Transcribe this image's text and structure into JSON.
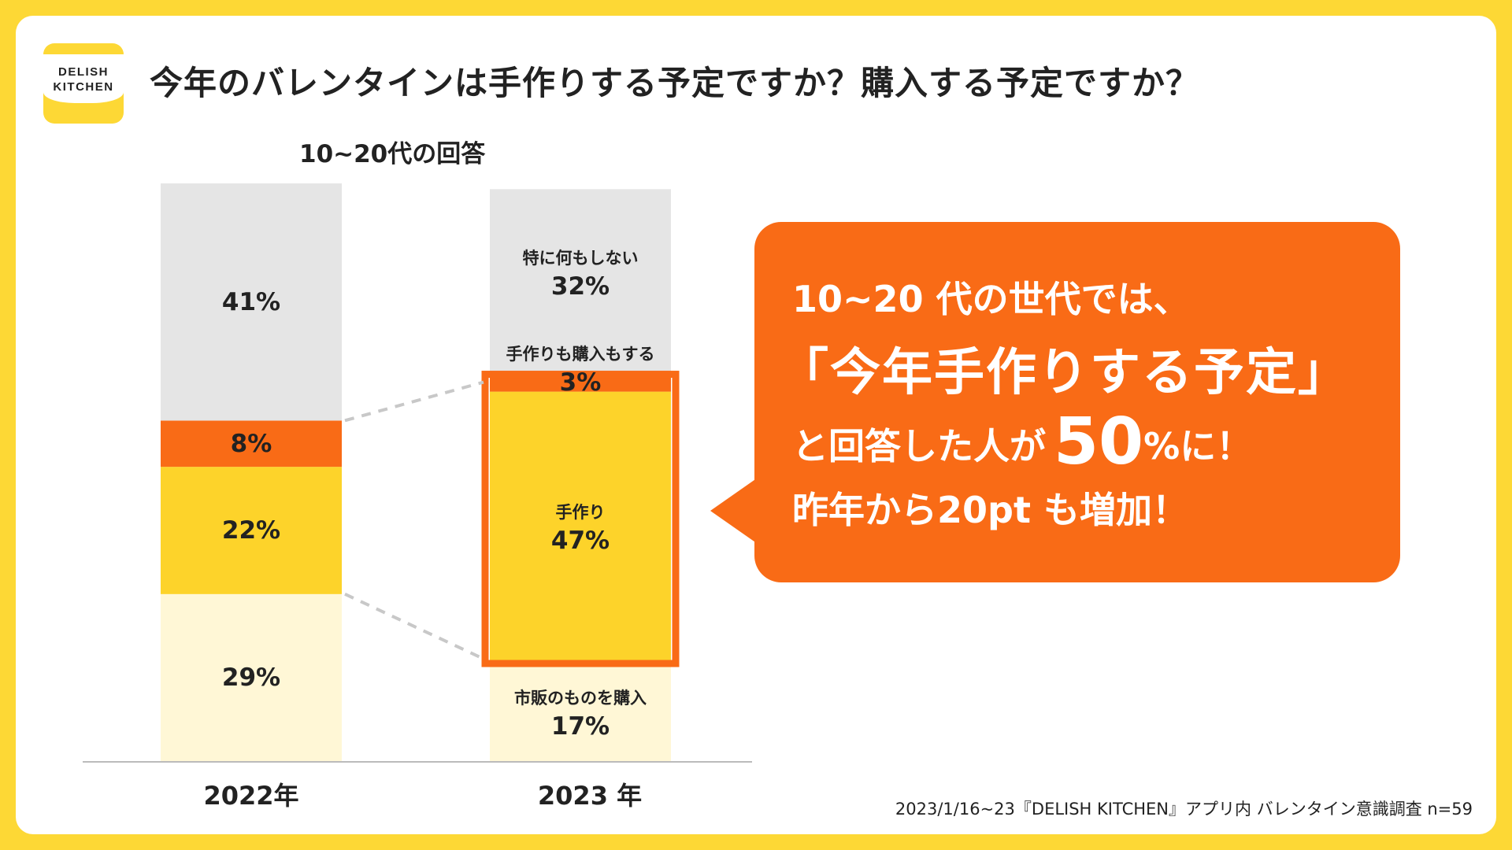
{
  "brand": {
    "line1": "DELISH",
    "line2": "KITCHEN"
  },
  "title": "今年のバレンタインは手作りする予定ですか？購入する予定ですか？",
  "subtitle": "10~20代の回答",
  "colors": {
    "background": "#FDD835",
    "none": "#E5E5E5",
    "both": "#F96B16",
    "handmade": "#FDD32A",
    "buy": "#FFF7D6",
    "highlight": "#F96B16"
  },
  "chart_data": {
    "type": "bar",
    "stacked": true,
    "title": "10~20代の回答",
    "categories": [
      "2022年",
      "2023 年"
    ],
    "ylim": [
      0,
      100
    ],
    "series": [
      {
        "name": "市販のものを購入",
        "key": "buy",
        "values": [
          29,
          17
        ],
        "labels": [
          "29%",
          "17%"
        ]
      },
      {
        "name": "手作り",
        "key": "handmade",
        "values": [
          22,
          47
        ],
        "labels": [
          "22%",
          "47%"
        ]
      },
      {
        "name": "手作りも購入もする",
        "key": "both",
        "values": [
          8,
          3
        ],
        "labels": [
          "8%",
          "3%"
        ]
      },
      {
        "name": "特に何もしない",
        "key": "none",
        "values": [
          41,
          32
        ],
        "labels": [
          "41%",
          "32%"
        ]
      }
    ]
  },
  "callout": {
    "line1": "10~20 代の世代では、",
    "line2": "「今年手作りする予定」",
    "line3_pre": "と回答した人が",
    "line3_big": "50",
    "line3_post": "%に！",
    "line4": "昨年から20pt も増加！"
  },
  "source": "2023/1/16~23『DELISH KITCHEN』アプリ内 バレンタイン意識調査 n=59"
}
